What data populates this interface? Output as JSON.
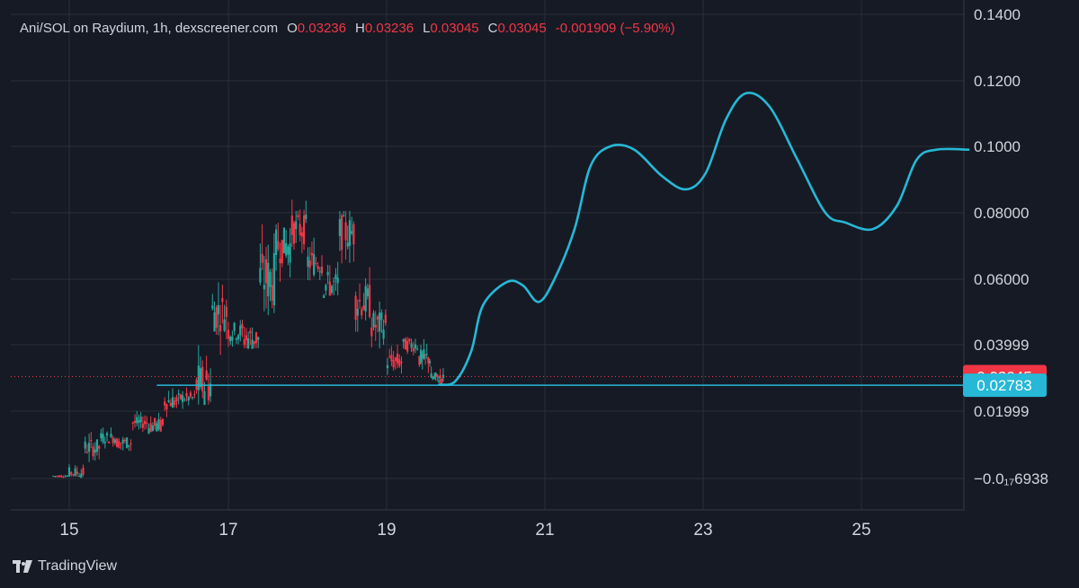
{
  "legend": {
    "symbol": "Ani/SOL on Raydium, 1h, dexscreener.com",
    "open_label": "O",
    "open": "0.03236",
    "high_label": "H",
    "high": "0.03236",
    "low_label": "L",
    "low": "0.03045",
    "close_label": "C",
    "close": "0.03045",
    "change": "-0.001909 (−5.90%)"
  },
  "brand": {
    "name": "TradingView",
    "icon": "tradingview-logo-icon"
  },
  "colors": {
    "background": "#161a25",
    "grid": "#2a2e39",
    "up": "#26a69a",
    "down": "#f23645",
    "projection": "#26b8d6",
    "text": "#d1d4dc"
  },
  "chart_data": {
    "type": "line",
    "x_ticks": [
      "15",
      "17",
      "19",
      "21",
      "23",
      "25"
    ],
    "y_ticks": [
      "−0.0₁₇6938",
      "0.01999",
      "0.03999",
      "0.06000",
      "0.08000",
      "0.1000",
      "0.1200",
      "0.1400"
    ],
    "ylim": [
      -0.007,
      0.141
    ],
    "xlim": [
      14.1,
      26.3
    ],
    "current_price": {
      "value": 0.03045,
      "label": "0.03045",
      "color": "#f23645"
    },
    "support_line": {
      "value": 0.02783,
      "label": "0.02783",
      "color": "#26b8d6",
      "from_x": 16.1
    },
    "candles_approx": [
      [
        14.8,
        0.0,
        0.0008,
        -0.0002,
        0.0004
      ],
      [
        15.0,
        0.0004,
        0.002,
        0.0002,
        0.0014
      ],
      [
        15.2,
        0.0014,
        0.01,
        0.001,
        0.009
      ],
      [
        15.4,
        0.009,
        0.0165,
        0.0065,
        0.012
      ],
      [
        15.6,
        0.012,
        0.017,
        0.008,
        0.0105
      ],
      [
        15.8,
        0.0105,
        0.019,
        0.0095,
        0.0165
      ],
      [
        16.0,
        0.0165,
        0.02,
        0.014,
        0.0155
      ],
      [
        16.2,
        0.0155,
        0.029,
        0.014,
        0.023
      ],
      [
        16.4,
        0.023,
        0.029,
        0.02,
        0.024
      ],
      [
        16.6,
        0.024,
        0.03,
        0.022,
        0.028
      ],
      [
        16.8,
        0.028,
        0.061,
        0.027,
        0.05
      ],
      [
        17.0,
        0.05,
        0.056,
        0.042,
        0.044
      ],
      [
        17.2,
        0.044,
        0.048,
        0.039,
        0.042
      ],
      [
        17.4,
        0.042,
        0.062,
        0.041,
        0.06
      ],
      [
        17.6,
        0.06,
        0.087,
        0.056,
        0.07
      ],
      [
        17.8,
        0.07,
        0.086,
        0.066,
        0.075
      ],
      [
        18.0,
        0.075,
        0.079,
        0.06,
        0.065
      ],
      [
        18.2,
        0.065,
        0.068,
        0.055,
        0.058
      ],
      [
        18.4,
        0.058,
        0.0805,
        0.056,
        0.074
      ],
      [
        18.6,
        0.074,
        0.075,
        0.05,
        0.053
      ],
      [
        18.8,
        0.053,
        0.056,
        0.044,
        0.046
      ],
      [
        19.0,
        0.046,
        0.047,
        0.031,
        0.035
      ],
      [
        19.2,
        0.035,
        0.042,
        0.032,
        0.04
      ],
      [
        19.4,
        0.04,
        0.044,
        0.033,
        0.036
      ],
      [
        19.55,
        0.036,
        0.038,
        0.028,
        0.03
      ],
      [
        19.7,
        0.03,
        0.033,
        0.029,
        0.031
      ]
    ],
    "projection_curve_approx": [
      [
        19.65,
        0.028
      ],
      [
        19.85,
        0.029
      ],
      [
        20.05,
        0.038
      ],
      [
        20.2,
        0.052
      ],
      [
        20.5,
        0.059
      ],
      [
        20.7,
        0.058
      ],
      [
        20.9,
        0.053
      ],
      [
        21.1,
        0.06
      ],
      [
        21.35,
        0.075
      ],
      [
        21.55,
        0.094
      ],
      [
        21.8,
        0.1
      ],
      [
        22.1,
        0.099
      ],
      [
        22.45,
        0.091
      ],
      [
        22.75,
        0.087
      ],
      [
        23.0,
        0.092
      ],
      [
        23.25,
        0.108
      ],
      [
        23.5,
        0.116
      ],
      [
        23.8,
        0.112
      ],
      [
        24.15,
        0.096
      ],
      [
        24.5,
        0.08
      ],
      [
        24.75,
        0.077
      ],
      [
        25.1,
        0.075
      ],
      [
        25.4,
        0.082
      ],
      [
        25.65,
        0.096
      ],
      [
        25.9,
        0.099
      ],
      [
        26.3,
        0.099
      ]
    ]
  }
}
